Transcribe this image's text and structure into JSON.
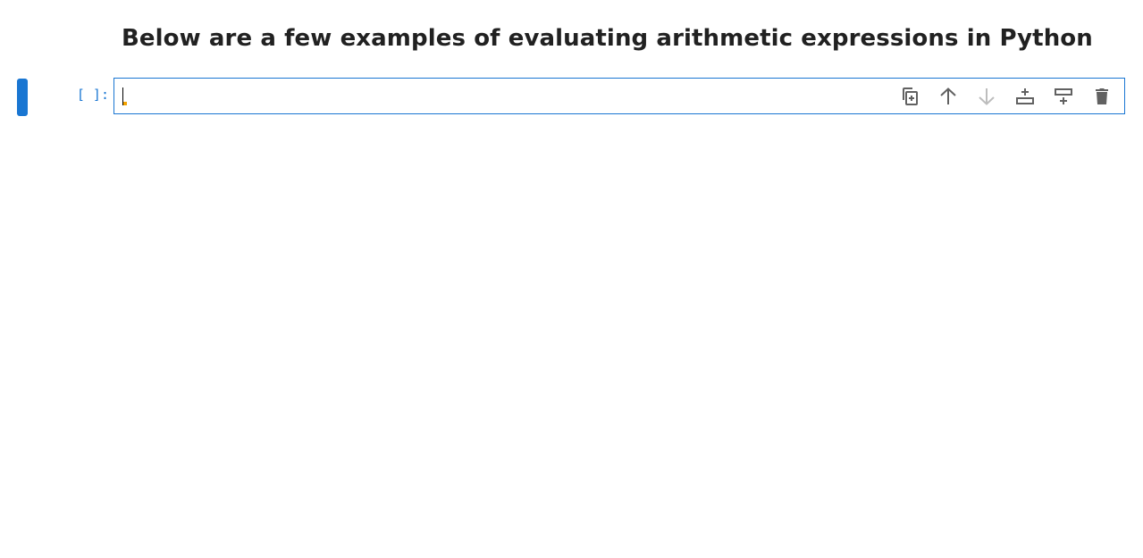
{
  "markdown": {
    "heading": "Below are a few examples of evaluating arithmetic expressions in Python"
  },
  "code_cell": {
    "prompt": "[ ]:",
    "value": "",
    "toolbar": {
      "icons": [
        "duplicate-icon",
        "move-up-icon",
        "move-down-icon",
        "insert-above-icon",
        "insert-below-icon",
        "delete-icon"
      ]
    }
  },
  "colors": {
    "accent": "#1976d2",
    "heading": "#212121",
    "icon": "#616161",
    "icon_disabled": "#bdbdbd"
  }
}
